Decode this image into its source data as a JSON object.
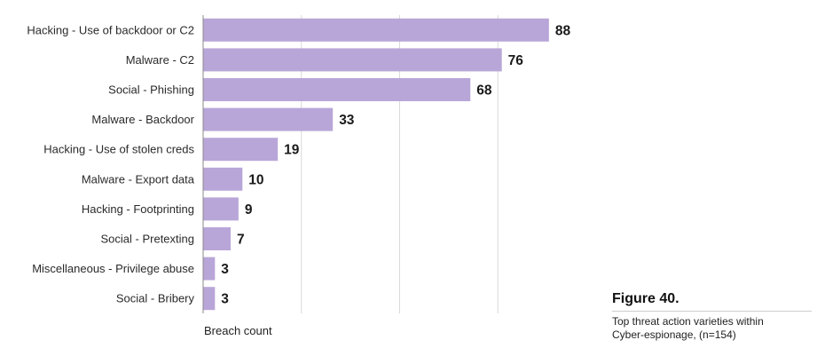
{
  "chart_data": {
    "type": "bar",
    "orientation": "horizontal",
    "categories": [
      "Hacking - Use of backdoor or C2",
      "Malware - C2",
      "Social - Phishing",
      "Malware - Backdoor",
      "Hacking - Use of stolen creds",
      "Malware - Export data",
      "Hacking - Footprinting",
      "Social - Pretexting",
      "Miscellaneous - Privilege abuse",
      "Social - Bribery"
    ],
    "values": [
      88,
      76,
      68,
      33,
      19,
      10,
      9,
      7,
      3,
      3
    ],
    "xlabel": "Breach count",
    "ylabel": "",
    "xlim": [
      0,
      100
    ],
    "grid": true,
    "bar_color": "#b9a6d8",
    "grid_color": "#d9d9d9"
  },
  "caption": {
    "figure": "Figure 40.",
    "line1": "Top threat action varieties within",
    "line2": "Cyber-espionage, (n=154)"
  }
}
